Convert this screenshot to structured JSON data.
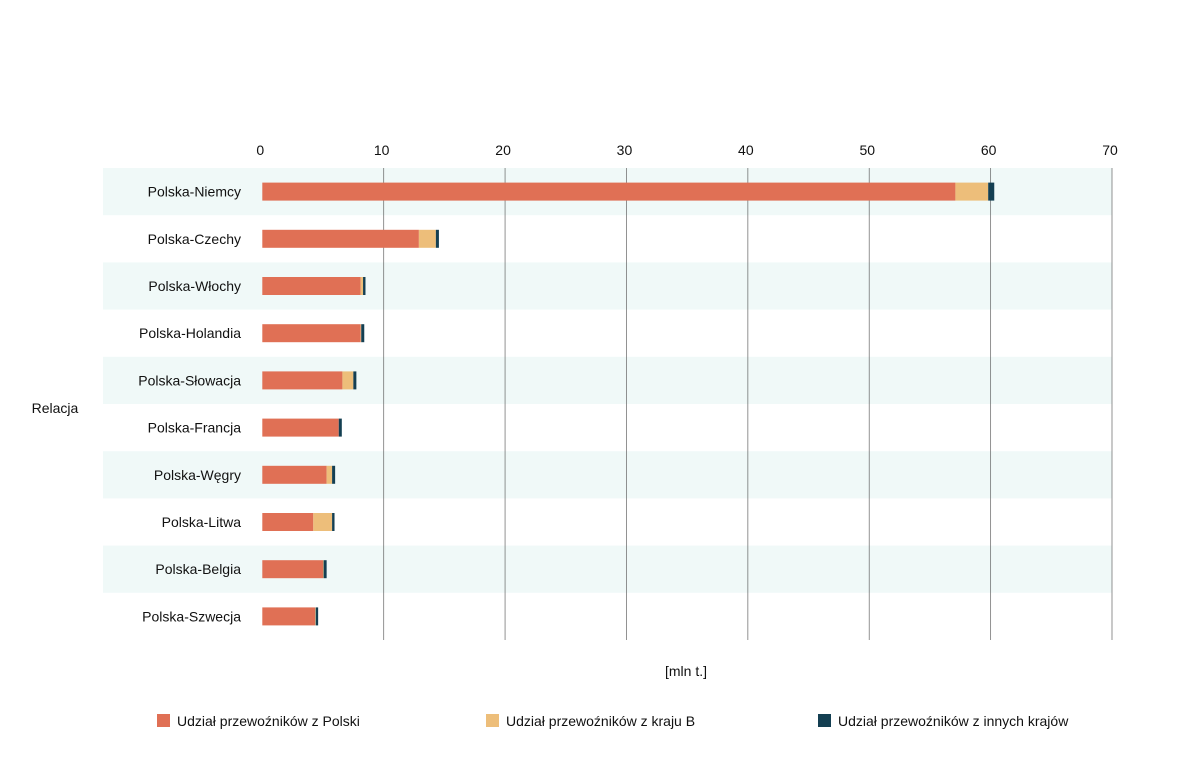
{
  "chart_data": {
    "type": "bar",
    "orientation": "horizontal",
    "stacked": true,
    "title": "",
    "xlabel": "[mln t.]",
    "ylabel": "Relacja",
    "xlim": [
      0,
      70
    ],
    "xticks": [
      0,
      10,
      20,
      30,
      40,
      50,
      60,
      70
    ],
    "grid": true,
    "legend_position": "bottom",
    "categories": [
      "Polska-Niemcy",
      "Polska-Czechy",
      "Polska-Włochy",
      "Polska-Holandia",
      "Polska-Słowacja",
      "Polska-Francja",
      "Polska-Węgry",
      "Polska-Litwa",
      "Polska-Belgia",
      "Polska-Szwecja"
    ],
    "series": [
      {
        "name": "Udział przewoźników z Polski",
        "color": "#E07055",
        "values": [
          57.1,
          12.9,
          8.1,
          8.1,
          6.6,
          6.3,
          5.3,
          4.2,
          5.0,
          4.35
        ]
      },
      {
        "name": "Udział przewoźników z kraju B",
        "color": "#EDBE7A",
        "values": [
          2.7,
          1.4,
          0.2,
          0.05,
          0.9,
          0.0,
          0.45,
          1.55,
          0.05,
          0.05
        ]
      },
      {
        "name": "Udział przewoźników z innych krajów",
        "color": "#143F52",
        "values": [
          0.5,
          0.25,
          0.2,
          0.25,
          0.25,
          0.25,
          0.25,
          0.2,
          0.25,
          0.2
        ]
      }
    ],
    "band_color": "#F0F9F8"
  }
}
